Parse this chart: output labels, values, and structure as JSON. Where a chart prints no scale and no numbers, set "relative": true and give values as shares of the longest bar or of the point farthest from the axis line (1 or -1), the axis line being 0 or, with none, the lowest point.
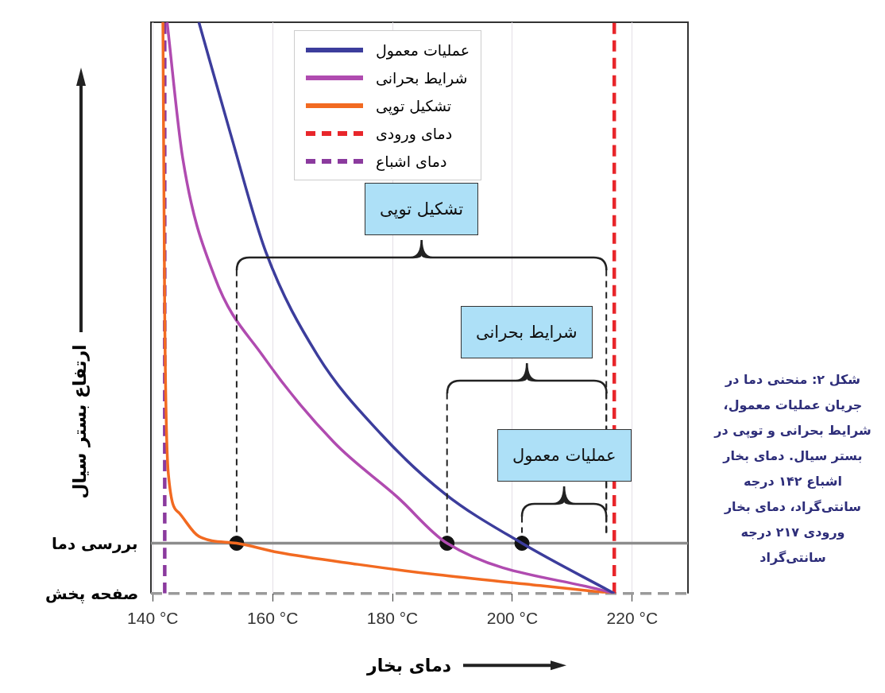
{
  "chart_data": {
    "type": "line",
    "relative": true,
    "xlabel": "دمای بخار",
    "ylabel": "ارتفاع بستر سیال",
    "xlim": [
      139.7,
      229.3
    ],
    "xticks": [
      {
        "value": 140,
        "label": "140 °C"
      },
      {
        "value": 160,
        "label": "160 °C"
      },
      {
        "value": 180,
        "label": "180 °C"
      },
      {
        "value": 200,
        "label": "200 °C"
      },
      {
        "value": 220,
        "label": "220 °C"
      }
    ],
    "tick_labels": "x",
    "grid": "x",
    "legend": "top",
    "line_style": "solid",
    "series": [
      {
        "name": "عملیات معمول",
        "color": "#3c3d9c",
        "x": [
          147.7,
          153.0,
          158.9,
          167.5,
          178.1,
          188.7,
          201.6,
          217
        ],
        "values": [
          1.0,
          0.804,
          0.597,
          0.417,
          0.279,
          0.175,
          0.088,
          0
        ]
      },
      {
        "name": "شرایط بحرانی",
        "color": "#b04bb0",
        "x": [
          142.4,
          145.0,
          150.3,
          158.3,
          170.2,
          180.8,
          189.1,
          217
        ],
        "values": [
          1.0,
          0.762,
          0.555,
          0.417,
          0.265,
          0.169,
          0.088,
          0
        ]
      },
      {
        "name": "تشکیل توپی",
        "color": "#f26a21",
        "x": [
          141.7,
          142.0,
          142.6,
          144.4,
          147.7,
          154.0,
          160.9,
          174.2,
          187.4,
          204.6,
          217
        ],
        "values": [
          1.0,
          0.486,
          0.21,
          0.141,
          0.1,
          0.088,
          0.072,
          0.051,
          0.033,
          0.014,
          0
        ]
      },
      {
        "name": "دمای ورودی",
        "color": "#e8262b",
        "line_style": "dashed",
        "x": [
          217,
          217
        ],
        "values": [
          0,
          1
        ]
      },
      {
        "name": "دمای اشباع",
        "color": "#8b3a9e",
        "line_style": "dashed",
        "x": [
          142,
          142
        ],
        "values": [
          0,
          1
        ]
      },
      {
        "type": "scatter",
        "marker": "circle",
        "color": "#111111",
        "x": [
          154.0,
          189.1,
          201.6
        ],
        "values": [
          0.088,
          0.088,
          0.088
        ]
      }
    ],
    "ref_lines": [
      {
        "axis": "y",
        "value": 0.088,
        "label": "بررسی دما",
        "color": "#8c8c8c",
        "line_style": "solid"
      },
      {
        "axis": "y",
        "value": 0,
        "label": "صفحه پخش",
        "color": "#9a9a9a",
        "line_style": "dashed"
      }
    ],
    "annotations": [
      "تشکیل توپی",
      "شرایط بحرانی",
      "عملیات معمول",
      "شکل ۲: منحنی دما در جریان عملیات معمول، شرایط بحرانی و توپی در بستر سیال. دمای بخار اشباع ۱۴۲ درجه سانتی‌گراد، دمای بخار ورودی ۲۱۷ درجه سانتی‌گراد"
    ]
  }
}
